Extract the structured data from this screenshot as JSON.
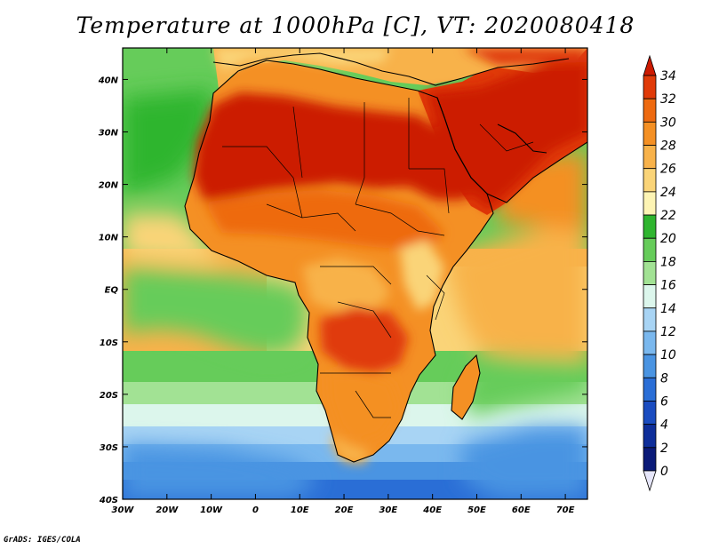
{
  "title": "Temperature at 1000hPa [C], VT: 2020080418",
  "credit": "GrADS: IGES/COLA",
  "map": {
    "variable": "Temperature at 1000hPa",
    "units": "C",
    "valid_time": "2020080418",
    "lon_range": [
      -30,
      75
    ],
    "lat_range": [
      -40,
      46
    ],
    "x_ticks": [
      {
        "value": -30,
        "label": "30W"
      },
      {
        "value": -20,
        "label": "20W"
      },
      {
        "value": -10,
        "label": "10W"
      },
      {
        "value": 0,
        "label": "0"
      },
      {
        "value": 10,
        "label": "10E"
      },
      {
        "value": 20,
        "label": "20E"
      },
      {
        "value": 30,
        "label": "30E"
      },
      {
        "value": 40,
        "label": "40E"
      },
      {
        "value": 50,
        "label": "50E"
      },
      {
        "value": 60,
        "label": "60E"
      },
      {
        "value": 70,
        "label": "70E"
      }
    ],
    "y_ticks": [
      {
        "value": 40,
        "label": "40N"
      },
      {
        "value": 30,
        "label": "30N"
      },
      {
        "value": 20,
        "label": "20N"
      },
      {
        "value": 10,
        "label": "10N"
      },
      {
        "value": 0,
        "label": "EQ"
      },
      {
        "value": -10,
        "label": "10S"
      },
      {
        "value": -20,
        "label": "20S"
      },
      {
        "value": -30,
        "label": "30S"
      },
      {
        "value": -40,
        "label": "40S"
      }
    ]
  },
  "colorbar": {
    "levels": [
      {
        "label": "34",
        "color": "#cc1a00"
      },
      {
        "label": "32",
        "color": "#e03a08"
      },
      {
        "label": "30",
        "color": "#ee6a10"
      },
      {
        "label": "28",
        "color": "#f49024"
      },
      {
        "label": "26",
        "color": "#f8b24a"
      },
      {
        "label": "24",
        "color": "#fad478"
      },
      {
        "label": "22",
        "color": "#fdf4b4"
      },
      {
        "label": "20",
        "color": "#2fb52f"
      },
      {
        "label": "18",
        "color": "#66cc5a"
      },
      {
        "label": "16",
        "color": "#a2e294"
      },
      {
        "label": "14",
        "color": "#dcf6ec"
      },
      {
        "label": "12",
        "color": "#a8d4f4"
      },
      {
        "label": "10",
        "color": "#7ab8ee"
      },
      {
        "label": "8",
        "color": "#4a94e2"
      },
      {
        "label": "6",
        "color": "#2a6ed6"
      },
      {
        "label": "4",
        "color": "#1a4cc0"
      },
      {
        "label": "2",
        "color": "#0e2e9a"
      },
      {
        "label": "0",
        "color": "#0a1a78"
      }
    ],
    "top_arrow_color": "#cc1a00",
    "bottom_arrow_color": "#e6e6fa"
  }
}
